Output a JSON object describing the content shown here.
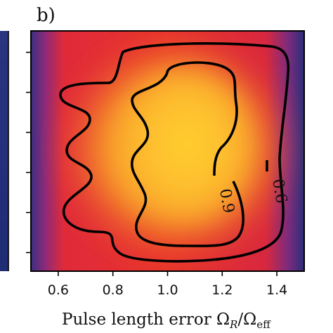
{
  "panel_label": "b)",
  "chart_data": {
    "type": "heatmap",
    "title": "",
    "xlabel": "Pulse length error Ω_R/Ω_eff",
    "xlabel_parts": {
      "lead": "Pulse length error Ω",
      "sub1": "R",
      "mid": "/Ω",
      "sub2": "eff"
    },
    "ylabel": "",
    "xlim": [
      0.5,
      1.5
    ],
    "x_ticks": [
      0.6,
      0.8,
      1.0,
      1.2,
      1.4
    ],
    "x_tick_labels": [
      "0.6",
      "0.8",
      "1.0",
      "1.2",
      "1.4"
    ],
    "y_tick_count": 6,
    "grid": false,
    "colormap": "plasma",
    "contour_levels": [
      0.6,
      0.9
    ],
    "contour_labels": [
      "0.6",
      "0.9"
    ],
    "peak_value": 1.0,
    "colors": {
      "low": "#2d2f7a",
      "mid": "#e8222b",
      "high": "#fdbf2a",
      "contour": "#000000"
    },
    "left_colorbar_visible": true
  }
}
